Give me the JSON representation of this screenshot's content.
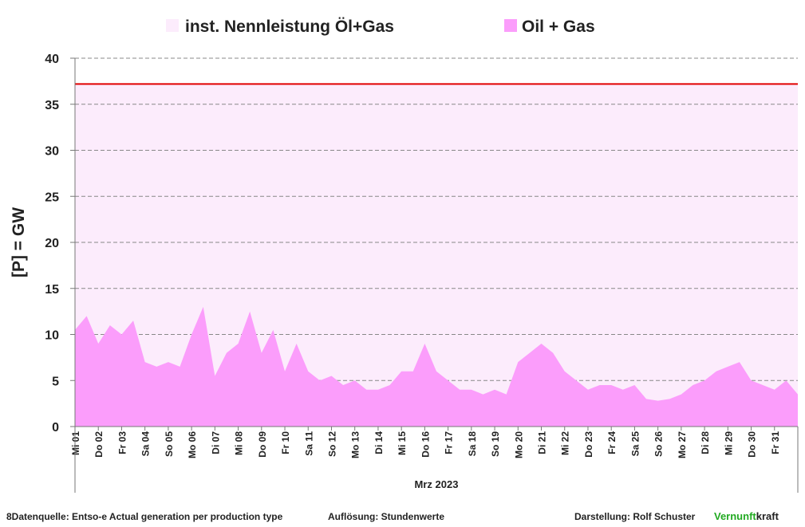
{
  "chart_data": {
    "type": "area",
    "ylabel": "[P]  = GW",
    "xlabel": "Mrz 2023",
    "capacity": {
      "name": "inst. Nennleistung Öl+Gas",
      "value": 37.2,
      "color": "#fcecfc",
      "line_color": "#e00000"
    },
    "series": [
      {
        "name": "Oil + Gas",
        "color": "#fb9dfb",
        "values": [
          10.5,
          12,
          9,
          11,
          10,
          11.5,
          7,
          6.5,
          7,
          6.5,
          10,
          13,
          5.5,
          8,
          9,
          12.5,
          8,
          10.5,
          6,
          9,
          6,
          5,
          5.5,
          4.5,
          5,
          4,
          4,
          4.5,
          6,
          6,
          9,
          6,
          5,
          4,
          4,
          3.5,
          4,
          3.5,
          7,
          8,
          9,
          8,
          6,
          5,
          4,
          4.5,
          4.5,
          4,
          4.5,
          3,
          2.8,
          3,
          3.5,
          4.5,
          5,
          6,
          6.5,
          7,
          5,
          4.5,
          4,
          5,
          3.5
        ]
      }
    ],
    "x": [
      0,
      0.5,
      1,
      1.5,
      2,
      2.5,
      3,
      3.5,
      4,
      4.5,
      5,
      5.5,
      6,
      6.5,
      7,
      7.5,
      8,
      8.5,
      9,
      9.5,
      10,
      10.5,
      11,
      11.5,
      12,
      12.5,
      13,
      13.5,
      14,
      14.5,
      15,
      15.5,
      16,
      16.5,
      17,
      17.5,
      18,
      18.5,
      19,
      19.5,
      20,
      20.5,
      21,
      21.5,
      22,
      22.5,
      23,
      23.5,
      24,
      24.5,
      25,
      25.5,
      26,
      26.5,
      27,
      27.5,
      28,
      28.5,
      29,
      29.5,
      30,
      30.5,
      31
    ],
    "xlim": [
      0,
      31
    ],
    "xticks": [
      {
        "value": 0,
        "label": "Mi 01"
      },
      {
        "value": 1,
        "label": "Do 02"
      },
      {
        "value": 2,
        "label": "Fr 03"
      },
      {
        "value": 3,
        "label": "Sa 04"
      },
      {
        "value": 4,
        "label": "So 05"
      },
      {
        "value": 5,
        "label": "Mo 06"
      },
      {
        "value": 6,
        "label": "Di 07"
      },
      {
        "value": 7,
        "label": "Mi 08"
      },
      {
        "value": 8,
        "label": "Do 09"
      },
      {
        "value": 9,
        "label": "Fr 10"
      },
      {
        "value": 10,
        "label": "Sa 11"
      },
      {
        "value": 11,
        "label": "So 12"
      },
      {
        "value": 12,
        "label": "Mo 13"
      },
      {
        "value": 13,
        "label": "Di 14"
      },
      {
        "value": 14,
        "label": "Mi 15"
      },
      {
        "value": 15,
        "label": "Do 16"
      },
      {
        "value": 16,
        "label": "Fr 17"
      },
      {
        "value": 17,
        "label": "Sa 18"
      },
      {
        "value": 18,
        "label": "So 19"
      },
      {
        "value": 19,
        "label": "Mo 20"
      },
      {
        "value": 20,
        "label": "Di 21"
      },
      {
        "value": 21,
        "label": "Mi 22"
      },
      {
        "value": 22,
        "label": "Do 23"
      },
      {
        "value": 23,
        "label": "Fr 24"
      },
      {
        "value": 24,
        "label": "Sa 25"
      },
      {
        "value": 25,
        "label": "So 26"
      },
      {
        "value": 26,
        "label": "Mo 27"
      },
      {
        "value": 27,
        "label": "Di 28"
      },
      {
        "value": 28,
        "label": "Mi 29"
      },
      {
        "value": 29,
        "label": "Do 30"
      },
      {
        "value": 30,
        "label": "Fr 31"
      }
    ],
    "ylim": [
      0,
      40
    ],
    "yticks": [
      0,
      5,
      10,
      15,
      20,
      25,
      30,
      35,
      40
    ],
    "grid": true,
    "footer": {
      "source": "8Datenquelle: Entso-e  Actual generation per production type",
      "resolution": "Auflösung: Stundenwerte",
      "author": "Darstellung:  Rolf Schuster",
      "brand_a": "Vernunft",
      "brand_b": "kraft"
    }
  }
}
